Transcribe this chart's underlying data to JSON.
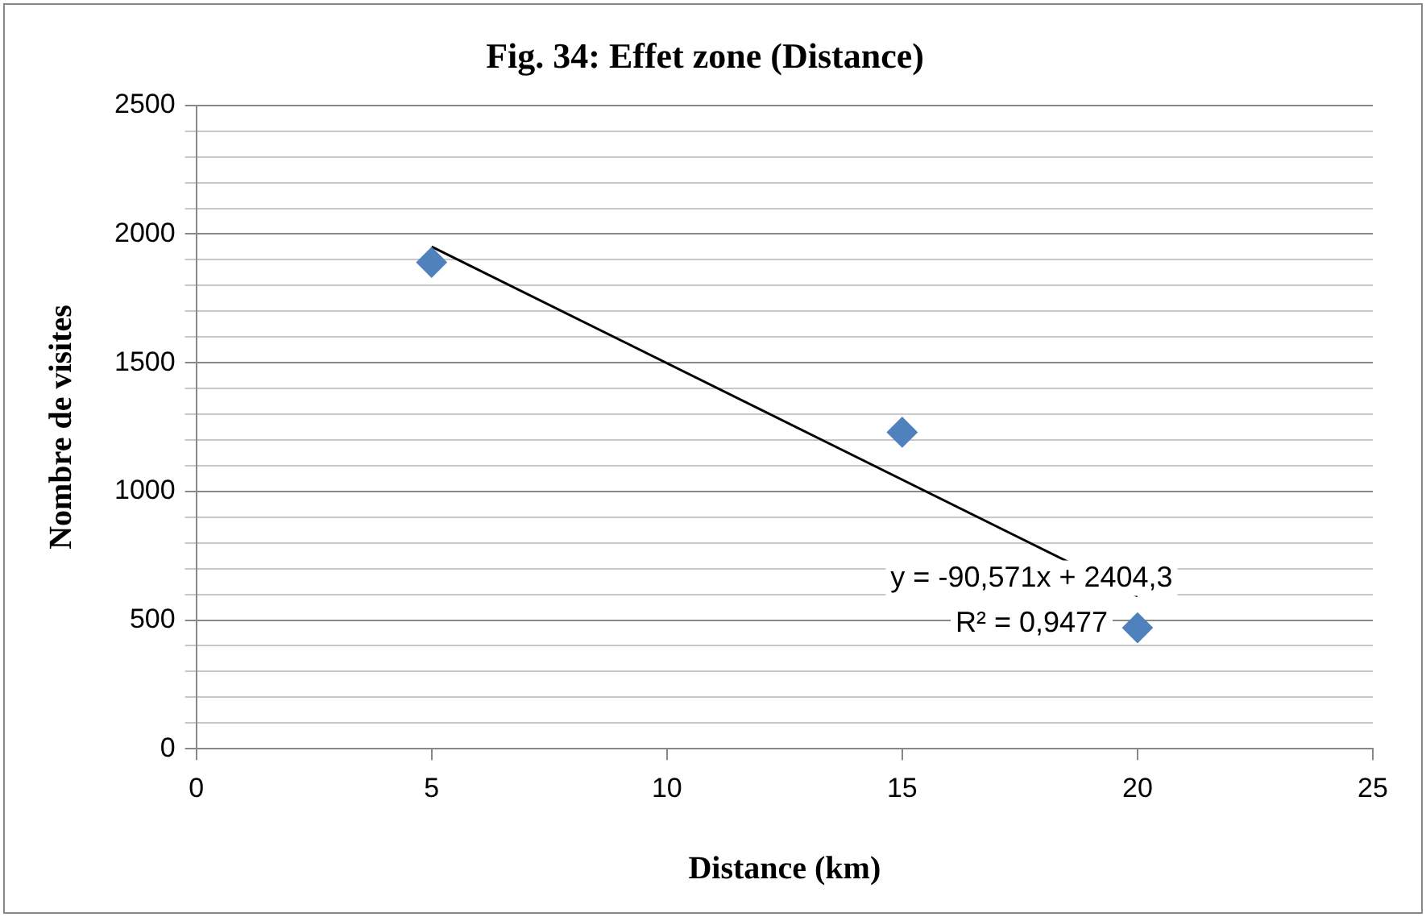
{
  "chart_data": {
    "type": "scatter",
    "title": "Fig. 34: Effet zone (Distance)",
    "xlabel": "Distance (km)",
    "ylabel": "Nombre de visites",
    "series": [
      {
        "color": "#4f81bd",
        "x": [
          5,
          15,
          20
        ],
        "values": [
          1890,
          1230,
          470
        ],
        "marker": "diamond"
      },
      {
        "type": "line",
        "color": "#000000",
        "x": [
          5,
          20
        ],
        "values": [
          1951,
          593
        ],
        "marker": "none"
      }
    ],
    "xlim": [
      0,
      25
    ],
    "xticks": [
      0,
      5,
      10,
      15,
      20,
      25
    ],
    "ylim": [
      0,
      2500
    ],
    "yticks": [
      0,
      {
        "value": 100,
        "label": null
      },
      {
        "value": 200,
        "label": null
      },
      {
        "value": 300,
        "label": null
      },
      {
        "value": 400,
        "label": null
      },
      500,
      {
        "value": 600,
        "label": null
      },
      {
        "value": 700,
        "label": null
      },
      {
        "value": 800,
        "label": null
      },
      {
        "value": 900,
        "label": null
      },
      1000,
      {
        "value": 1100,
        "label": null
      },
      {
        "value": 1200,
        "label": null
      },
      {
        "value": 1300,
        "label": null
      },
      {
        "value": 1400,
        "label": null
      },
      1500,
      {
        "value": 1600,
        "label": null
      },
      {
        "value": 1700,
        "label": null
      },
      {
        "value": 1800,
        "label": null
      },
      {
        "value": 1900,
        "label": null
      },
      2000,
      {
        "value": 2100,
        "label": null
      },
      {
        "value": 2200,
        "label": null
      },
      {
        "value": 2300,
        "label": null
      },
      {
        "value": 2400,
        "label": null
      },
      2500
    ],
    "grid": "y",
    "legend": false,
    "annotations": [
      "y = -90,571x + 2404,3",
      "R² = 0,9477"
    ]
  }
}
